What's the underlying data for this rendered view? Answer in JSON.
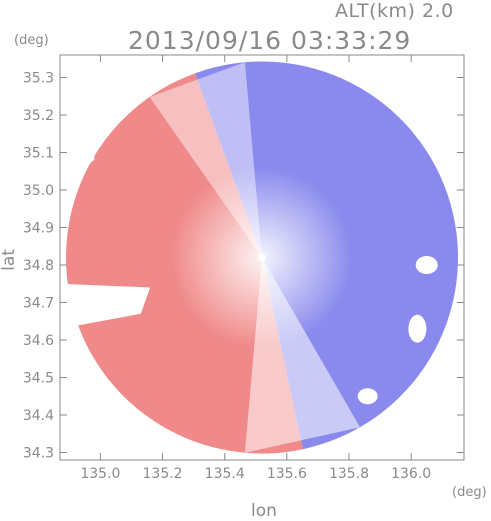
{
  "chart_data": {
    "type": "heatmap",
    "title": "2013/09/16 03:33:29",
    "subtitle": "ALT(km) 2.0",
    "xlabel": "lon",
    "ylabel": "lat",
    "x_unit": "(deg)",
    "y_unit": "(deg)",
    "xlim": [
      134.87,
      136.17
    ],
    "ylim": [
      34.28,
      35.36
    ],
    "x_ticks": [
      135.0,
      135.2,
      135.4,
      135.6,
      135.8,
      136.0
    ],
    "y_ticks": [
      34.3,
      34.4,
      34.5,
      34.6,
      34.7,
      34.8,
      34.9,
      35.0,
      35.1,
      35.2,
      35.3
    ],
    "x_tick_labels": [
      "135.0",
      "135.2",
      "135.4",
      "135.6",
      "135.8",
      "136.0"
    ],
    "y_tick_labels": [
      "34.3",
      "34.4",
      "34.5",
      "34.6",
      "34.7",
      "34.8",
      "34.9",
      "35.0",
      "35.1",
      "35.2",
      "35.3"
    ],
    "radar_center": {
      "lon": 135.52,
      "lat": 34.82
    },
    "grid": false,
    "colors": {
      "toward": "#f08a8a",
      "away": "#8a8aee",
      "zero": "#ffffff",
      "axis": "#8a8a8a"
    }
  }
}
